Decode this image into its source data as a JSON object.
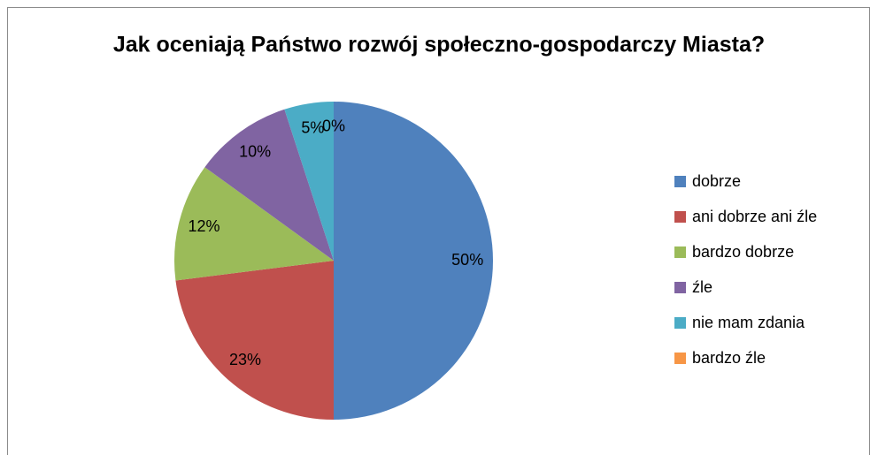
{
  "chart_data": {
    "type": "pie",
    "title": "Jak oceniają Państwo rozwój społeczno-gospodarczy Miasta?",
    "categories": [
      "dobrze",
      "ani dobrze ani źle",
      "bardzo dobrze",
      "źle",
      "nie mam zdania",
      "bardzo źle"
    ],
    "values": [
      50,
      23,
      12,
      10,
      5,
      0
    ],
    "value_labels": [
      "50%",
      "23%",
      "12%",
      "10%",
      "5%",
      "0%"
    ],
    "colors": [
      "#4f81bd",
      "#c0504d",
      "#9bbb59",
      "#8064a2",
      "#4bacc6",
      "#f79646"
    ],
    "legend": "right"
  }
}
